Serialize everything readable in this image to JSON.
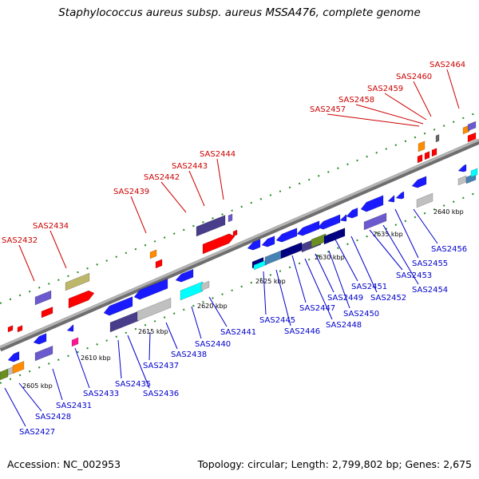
{
  "title": "Staphylococcus aureus subsp. aureus MSSA476, complete genome",
  "footer": {
    "accession": "Accession: NC_002953",
    "summary": "Topology: circular; Length: 2,799,802 bp; Genes: 2,675"
  },
  "colors": {
    "forward_label": "#cc0000",
    "reverse_label": "#0000cc",
    "backbone": "#999999",
    "blue": "#1a1aff",
    "red": "#ff0000",
    "purple": "#6a5acd",
    "darkslate": "#483d8b",
    "navy": "#000080",
    "olive": "#6b8e23",
    "khaki": "#bdb76b",
    "orange": "#ff8c00",
    "grey": "#c0c0c0",
    "cyan": "#00ffff",
    "steel": "#4682b4",
    "magenta": "#ff1493",
    "tick": "#228b22"
  },
  "scale_labels": [
    "2605 kbp",
    "2610 kbp",
    "2615 kbp",
    "2620 kbp",
    "2625 kbp",
    "2630 kbp",
    "2635 kbp",
    "2640 kbp"
  ],
  "forward_genes": [
    "SAS2432",
    "SAS2434",
    "SAS2439",
    "SAS2442",
    "SAS2443",
    "SAS2444",
    "SAS2457",
    "SAS2458",
    "SAS2459",
    "SAS2460",
    "SAS2464"
  ],
  "reverse_genes": [
    "SAS2427",
    "SAS2428",
    "SAS2431",
    "SAS2433",
    "SAS2435",
    "SAS2436",
    "SAS2437",
    "SAS2438",
    "SAS2440",
    "SAS2441",
    "SAS2445",
    "SAS2446",
    "SAS2447",
    "SAS2448",
    "SAS2449",
    "SAS2450",
    "SAS2451",
    "SAS2452",
    "SAS2453",
    "SAS2454",
    "SAS2455",
    "SAS2456"
  ]
}
